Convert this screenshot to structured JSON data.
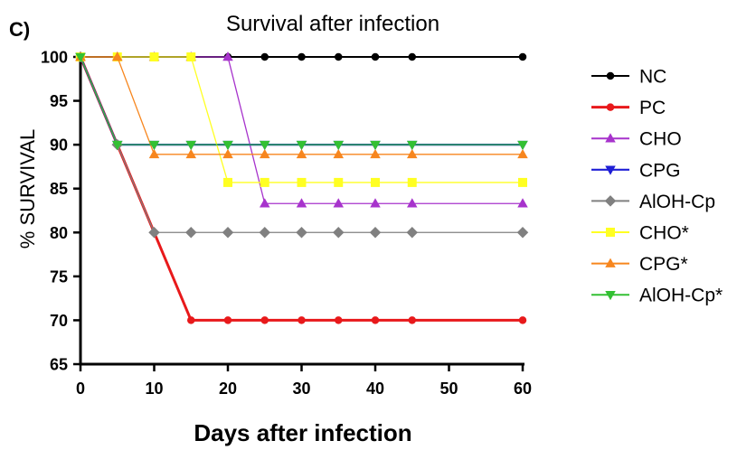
{
  "chart_data": {
    "type": "line",
    "panel_label": "C)",
    "title": "Survival after infection",
    "xlabel": "Days after infection",
    "ylabel": "% SURVIVAL",
    "xlim": [
      0,
      60
    ],
    "ylim": [
      65,
      100
    ],
    "xticks": [
      "0",
      "10",
      "20",
      "30",
      "40",
      "50",
      "60"
    ],
    "yticks": [
      "65",
      "70",
      "75",
      "80",
      "85",
      "90",
      "95",
      "100"
    ],
    "grid": false,
    "legend_position": "right",
    "series": [
      {
        "name": "NC",
        "color": "#000000",
        "marker": "circle",
        "stroke_width": 2,
        "points": [
          [
            0,
            100
          ],
          [
            5,
            100
          ],
          [
            10,
            100
          ],
          [
            15,
            100
          ],
          [
            20,
            100
          ],
          [
            25,
            100
          ],
          [
            30,
            100
          ],
          [
            35,
            100
          ],
          [
            40,
            100
          ],
          [
            45,
            100
          ],
          [
            60,
            100
          ]
        ]
      },
      {
        "name": "PC",
        "color": "#e8191b",
        "marker": "circle",
        "stroke_width": 3,
        "points": [
          [
            0,
            100
          ],
          [
            5,
            90
          ],
          [
            10,
            80
          ],
          [
            15,
            70
          ],
          [
            20,
            70
          ],
          [
            25,
            70
          ],
          [
            30,
            70
          ],
          [
            35,
            70
          ],
          [
            40,
            70
          ],
          [
            45,
            70
          ],
          [
            60,
            70
          ]
        ]
      },
      {
        "name": "CHO",
        "color": "#a733cc",
        "marker": "triangle-up",
        "stroke_width": 1.3,
        "points": [
          [
            0,
            100
          ],
          [
            5,
            100
          ],
          [
            10,
            100
          ],
          [
            15,
            100
          ],
          [
            20,
            100
          ],
          [
            25,
            83.3
          ],
          [
            30,
            83.3
          ],
          [
            35,
            83.3
          ],
          [
            40,
            83.3
          ],
          [
            45,
            83.3
          ],
          [
            60,
            83.3
          ]
        ]
      },
      {
        "name": "CPG",
        "color": "#1f1fd6",
        "marker": "triangle-down",
        "stroke_width": 2.2,
        "points": [
          [
            0,
            100
          ],
          [
            5,
            90
          ],
          [
            10,
            90
          ],
          [
            15,
            90
          ],
          [
            20,
            90
          ],
          [
            25,
            90
          ],
          [
            30,
            90
          ],
          [
            35,
            90
          ],
          [
            40,
            90
          ],
          [
            45,
            90
          ],
          [
            60,
            90
          ]
        ]
      },
      {
        "name": "AlOH-Cp",
        "color": "#808080",
        "marker": "diamond",
        "stroke_width": 1.3,
        "points": [
          [
            0,
            100
          ],
          [
            5,
            90
          ],
          [
            10,
            80
          ],
          [
            15,
            80
          ],
          [
            20,
            80
          ],
          [
            25,
            80
          ],
          [
            30,
            80
          ],
          [
            35,
            80
          ],
          [
            40,
            80
          ],
          [
            45,
            80
          ],
          [
            60,
            80
          ]
        ]
      },
      {
        "name": "CHO*",
        "color": "#ffff22",
        "marker": "square",
        "stroke_width": 1.3,
        "points": [
          [
            0,
            100
          ],
          [
            5,
            100
          ],
          [
            10,
            100
          ],
          [
            15,
            100
          ],
          [
            20,
            85.7
          ],
          [
            25,
            85.7
          ],
          [
            30,
            85.7
          ],
          [
            35,
            85.7
          ],
          [
            40,
            85.7
          ],
          [
            45,
            85.7
          ],
          [
            60,
            85.7
          ]
        ]
      },
      {
        "name": "CPG*",
        "color": "#f7861e",
        "marker": "triangle-up",
        "stroke_width": 1.3,
        "points": [
          [
            0,
            100
          ],
          [
            5,
            100
          ],
          [
            10,
            88.9
          ],
          [
            15,
            88.9
          ],
          [
            20,
            88.9
          ],
          [
            25,
            88.9
          ],
          [
            30,
            88.9
          ],
          [
            35,
            88.9
          ],
          [
            40,
            88.9
          ],
          [
            45,
            88.9
          ],
          [
            60,
            88.9
          ]
        ]
      },
      {
        "name": "AlOH-Cp*",
        "color": "#33c033",
        "marker": "triangle-down",
        "stroke_width": 1.3,
        "points": [
          [
            0,
            100
          ],
          [
            5,
            90
          ],
          [
            10,
            90
          ],
          [
            15,
            90
          ],
          [
            20,
            90
          ],
          [
            25,
            90
          ],
          [
            30,
            90
          ],
          [
            35,
            90
          ],
          [
            40,
            90
          ],
          [
            45,
            90
          ],
          [
            60,
            90
          ]
        ]
      }
    ]
  }
}
